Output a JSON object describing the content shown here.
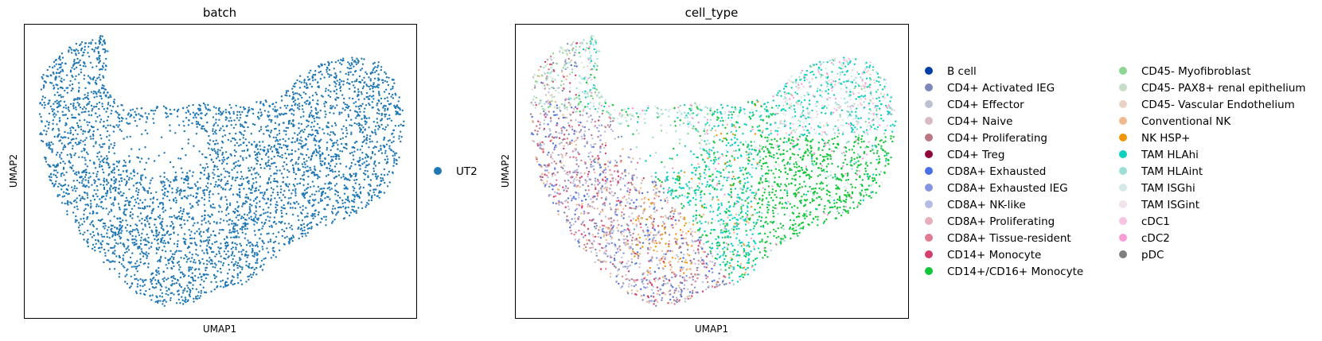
{
  "chart_data": [
    {
      "type": "scatter",
      "title": "batch",
      "xlabel": "UMAP1",
      "ylabel": "UMAP2",
      "xticks": [],
      "yticks": [],
      "grid": false,
      "legend_placement": "right",
      "series": [
        {
          "name": "UT2",
          "color": "#1f77b4"
        }
      ]
    },
    {
      "type": "scatter",
      "title": "cell_type",
      "xlabel": "UMAP1",
      "ylabel": "UMAP2",
      "xticks": [],
      "yticks": [],
      "grid": false,
      "legend_placement": "right",
      "series": [
        {
          "name": "B cell",
          "color": "#023fa5"
        },
        {
          "name": "CD4+ Activated IEG",
          "color": "#7d87b9"
        },
        {
          "name": "CD4+ Effector",
          "color": "#bec1d4"
        },
        {
          "name": "CD4+ Naive",
          "color": "#d6bcc0"
        },
        {
          "name": "CD4+ Proliferating",
          "color": "#bb7784"
        },
        {
          "name": "CD4+ Treg",
          "color": "#8e063b"
        },
        {
          "name": "CD8A+ Exhausted",
          "color": "#4a6fe3"
        },
        {
          "name": "CD8A+ Exhausted IEG",
          "color": "#8595e1"
        },
        {
          "name": "CD8A+ NK-like",
          "color": "#b5bbe3"
        },
        {
          "name": "CD8A+ Proliferating",
          "color": "#e6afb9"
        },
        {
          "name": "CD8A+ Tissue-resident",
          "color": "#e07b91"
        },
        {
          "name": "CD14+ Monocyte",
          "color": "#d33f6a"
        },
        {
          "name": "CD14+/CD16+ Monocyte",
          "color": "#11c638"
        },
        {
          "name": "CD45- Myofibroblast",
          "color": "#8dd593"
        },
        {
          "name": "CD45- PAX8+ renal epithelium",
          "color": "#c6dec7"
        },
        {
          "name": "CD45- Vascular Endothelium",
          "color": "#ead3c6"
        },
        {
          "name": "Conventional NK",
          "color": "#f0b98d"
        },
        {
          "name": "NK HSP+",
          "color": "#ef9708"
        },
        {
          "name": "TAM HLAhi",
          "color": "#0fcfc0"
        },
        {
          "name": "TAM HLAint",
          "color": "#9cded6"
        },
        {
          "name": "TAM ISGhi",
          "color": "#d5eae7"
        },
        {
          "name": "TAM ISGint",
          "color": "#f3e1eb"
        },
        {
          "name": "cDC1",
          "color": "#f6c4e1"
        },
        {
          "name": "cDC2",
          "color": "#f79cd4"
        },
        {
          "name": "pDC",
          "color": "#7f7f7f"
        }
      ]
    }
  ]
}
